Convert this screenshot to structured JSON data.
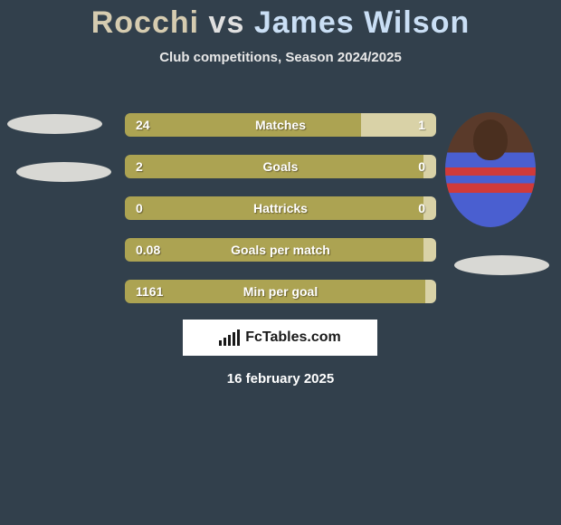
{
  "title": {
    "player1": "Rocchi",
    "vs": "vs",
    "player2": "James Wilson"
  },
  "subtitle": "Club competitions, Season 2024/2025",
  "date": "16 february 2025",
  "brand": "FcTables.com",
  "colors": {
    "background": "#32404c",
    "bar_left": "#aca352",
    "bar_right": "#d9d2a7",
    "shadow_oval": "#d8d8d4",
    "title_p1": "#d6ccb0",
    "title_p2": "#cadff5",
    "brand_box": "#ffffff",
    "brand_text": "#1a1a1a"
  },
  "stats": [
    {
      "label": "Matches",
      "left_val": "24",
      "right_val": "1",
      "left_pct": 76
    },
    {
      "label": "Goals",
      "left_val": "2",
      "right_val": "0",
      "left_pct": 96
    },
    {
      "label": "Hattricks",
      "left_val": "0",
      "right_val": "0",
      "left_pct": 96
    },
    {
      "label": "Goals per match",
      "left_val": "0.08",
      "right_val": "",
      "left_pct": 96
    },
    {
      "label": "Min per goal",
      "left_val": "1161",
      "right_val": "",
      "left_pct": 100
    }
  ]
}
